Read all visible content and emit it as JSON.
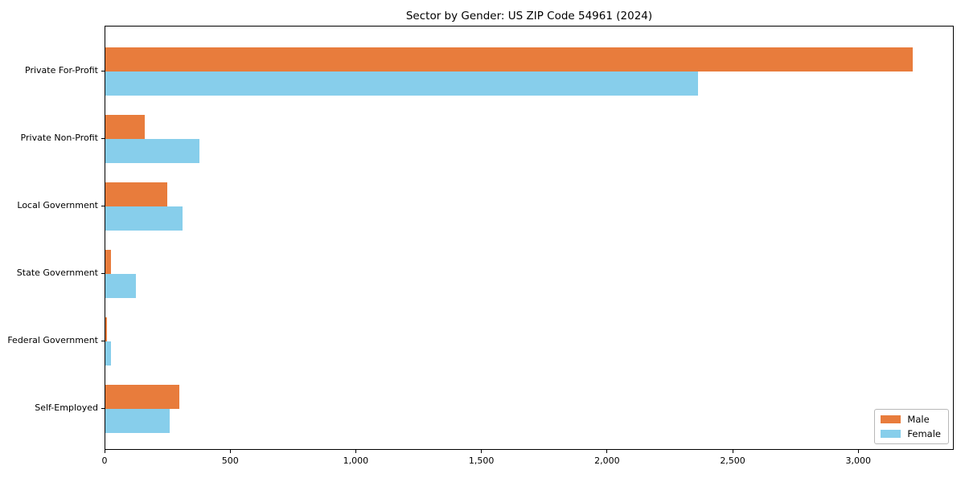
{
  "chart_data": {
    "type": "bar",
    "orientation": "horizontal",
    "title": "Sector by Gender: US ZIP Code 54961 (2024)",
    "categories": [
      "Private For-Profit",
      "Private Non-Profit",
      "Local Government",
      "State Government",
      "Federal Government",
      "Self-Employed"
    ],
    "series": [
      {
        "name": "Male",
        "color": "#e87c3c",
        "values": [
          3215,
          158,
          246,
          22,
          8,
          293
        ]
      },
      {
        "name": "Female",
        "color": "#87ceeb",
        "values": [
          2360,
          375,
          306,
          122,
          23,
          255
        ]
      }
    ],
    "xlabel": "",
    "ylabel": "",
    "xlim": [
      0,
      3380
    ],
    "x_ticks": [
      {
        "value": 0,
        "label": "0"
      },
      {
        "value": 500,
        "label": "500"
      },
      {
        "value": 1000,
        "label": "1,000"
      },
      {
        "value": 1500,
        "label": "1,500"
      },
      {
        "value": 2000,
        "label": "2,000"
      },
      {
        "value": 2500,
        "label": "2,500"
      },
      {
        "value": 3000,
        "label": "3,000"
      }
    ],
    "grid": false,
    "legend_position": "lower right"
  },
  "colors": {
    "background": "#ffffff",
    "spine": "#000000",
    "text": "#000000",
    "legend_border": "#b8b8b8"
  }
}
